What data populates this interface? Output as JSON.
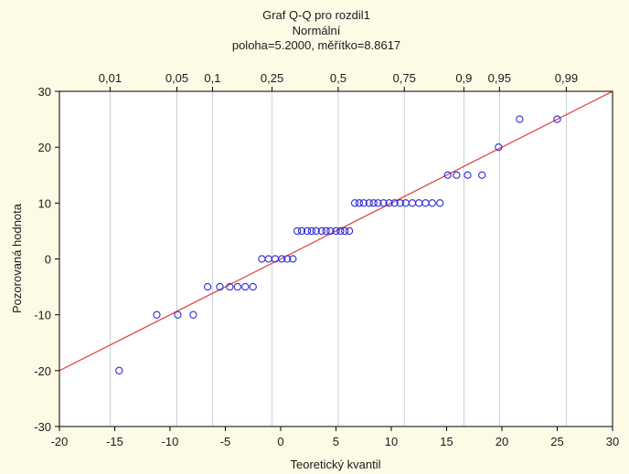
{
  "chart_data": {
    "type": "scatter",
    "title": "Graf Q-Q pro rozdil1",
    "subtitle": "Normální",
    "params": "poloha=5.2000, měřítko=8.8617",
    "xlabel": "Teoretický kvantil",
    "ylabel": "Pozorovaná hodnota",
    "xlim": [
      -20,
      30
    ],
    "ylim": [
      -30,
      30
    ],
    "x_ticks": [
      -20,
      -15,
      -10,
      -5,
      0,
      5,
      10,
      15,
      20,
      25,
      30
    ],
    "y_ticks": [
      -30,
      -20,
      -10,
      0,
      10,
      20,
      30
    ],
    "top_ticks": [
      {
        "label": "0,01",
        "x": -15.42
      },
      {
        "label": "0,05",
        "x": -9.38
      },
      {
        "label": "0,1",
        "x": -6.16
      },
      {
        "label": "0,25",
        "x": -0.78
      },
      {
        "label": "0,5",
        "x": 5.2
      },
      {
        "label": "0,75",
        "x": 11.18
      },
      {
        "label": "0,9",
        "x": 16.56
      },
      {
        "label": "0,95",
        "x": 19.78
      },
      {
        "label": "0,99",
        "x": 25.82
      }
    ],
    "grid": true,
    "fit_line": {
      "intercept": 0.0,
      "slope": 1.0
    },
    "points": [
      {
        "x": -14.6,
        "y": -20
      },
      {
        "x": -11.2,
        "y": -10
      },
      {
        "x": -9.3,
        "y": -10
      },
      {
        "x": -7.9,
        "y": -10
      },
      {
        "x": -6.6,
        "y": -5
      },
      {
        "x": -5.5,
        "y": -5
      },
      {
        "x": -4.6,
        "y": -5
      },
      {
        "x": -3.9,
        "y": -5
      },
      {
        "x": -3.2,
        "y": -5
      },
      {
        "x": -2.5,
        "y": -5
      },
      {
        "x": -1.7,
        "y": 0
      },
      {
        "x": -1.1,
        "y": 0
      },
      {
        "x": -0.5,
        "y": 0
      },
      {
        "x": 0.1,
        "y": 0
      },
      {
        "x": 0.6,
        "y": 0
      },
      {
        "x": 1.1,
        "y": 0
      },
      {
        "x": 1.5,
        "y": 5
      },
      {
        "x": 1.9,
        "y": 5
      },
      {
        "x": 2.4,
        "y": 5
      },
      {
        "x": 2.8,
        "y": 5
      },
      {
        "x": 3.2,
        "y": 5
      },
      {
        "x": 3.7,
        "y": 5
      },
      {
        "x": 4.1,
        "y": 5
      },
      {
        "x": 4.5,
        "y": 5
      },
      {
        "x": 5.0,
        "y": 5
      },
      {
        "x": 5.4,
        "y": 5
      },
      {
        "x": 5.8,
        "y": 5
      },
      {
        "x": 6.2,
        "y": 5
      },
      {
        "x": 6.7,
        "y": 10
      },
      {
        "x": 7.1,
        "y": 10
      },
      {
        "x": 7.5,
        "y": 10
      },
      {
        "x": 8.0,
        "y": 10
      },
      {
        "x": 8.4,
        "y": 10
      },
      {
        "x": 8.8,
        "y": 10
      },
      {
        "x": 9.3,
        "y": 10
      },
      {
        "x": 9.8,
        "y": 10
      },
      {
        "x": 10.3,
        "y": 10
      },
      {
        "x": 10.8,
        "y": 10
      },
      {
        "x": 11.3,
        "y": 10
      },
      {
        "x": 11.9,
        "y": 10
      },
      {
        "x": 12.5,
        "y": 10
      },
      {
        "x": 13.1,
        "y": 10
      },
      {
        "x": 13.7,
        "y": 10
      },
      {
        "x": 14.4,
        "y": 10
      },
      {
        "x": 15.1,
        "y": 15
      },
      {
        "x": 15.9,
        "y": 15
      },
      {
        "x": 16.9,
        "y": 15
      },
      {
        "x": 18.2,
        "y": 15
      },
      {
        "x": 19.7,
        "y": 20
      },
      {
        "x": 21.6,
        "y": 25
      },
      {
        "x": 25.0,
        "y": 25
      }
    ],
    "colors": {
      "background": "#fdfbe6",
      "plot_background": "#ffffff",
      "points": "#2b2bd6",
      "fit_line": "#e04a4a",
      "grid": "#c8ced8",
      "axis": "#000000"
    }
  }
}
